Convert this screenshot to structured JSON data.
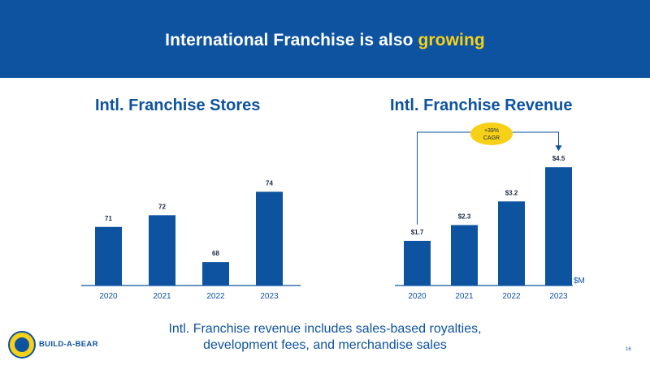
{
  "header": {
    "title_prefix": "International Franchise is also ",
    "title_accent": "growing",
    "background_color": "#0d53a0",
    "accent_color": "#f7d117"
  },
  "chart_data": [
    {
      "type": "bar",
      "title": "Intl. Franchise Stores",
      "categories": [
        "2020",
        "2021",
        "2022",
        "2023"
      ],
      "values": [
        71,
        72,
        68,
        74
      ],
      "value_labels": [
        "71",
        "72",
        "68",
        "74"
      ],
      "ylim": [
        66,
        75
      ],
      "bar_color": "#0d53a0"
    },
    {
      "type": "bar",
      "title": "Intl. Franchise Revenue",
      "categories": [
        "2020",
        "2021",
        "2022",
        "2023"
      ],
      "values": [
        1.7,
        2.3,
        3.2,
        4.5
      ],
      "value_labels": [
        "$1.7",
        "$2.3",
        "$3.2",
        "$4.5"
      ],
      "ylim": [
        0,
        5
      ],
      "unit_label": "$M",
      "annotation": {
        "line1": "+39%",
        "line2": "CAGR"
      },
      "bar_color": "#0d53a0"
    }
  ],
  "footer": {
    "line1": "Intl. Franchise revenue includes sales-based royalties,",
    "line2": "development fees, and merchandise sales",
    "brand": "BUILD-A-BEAR",
    "page_number": "16"
  }
}
